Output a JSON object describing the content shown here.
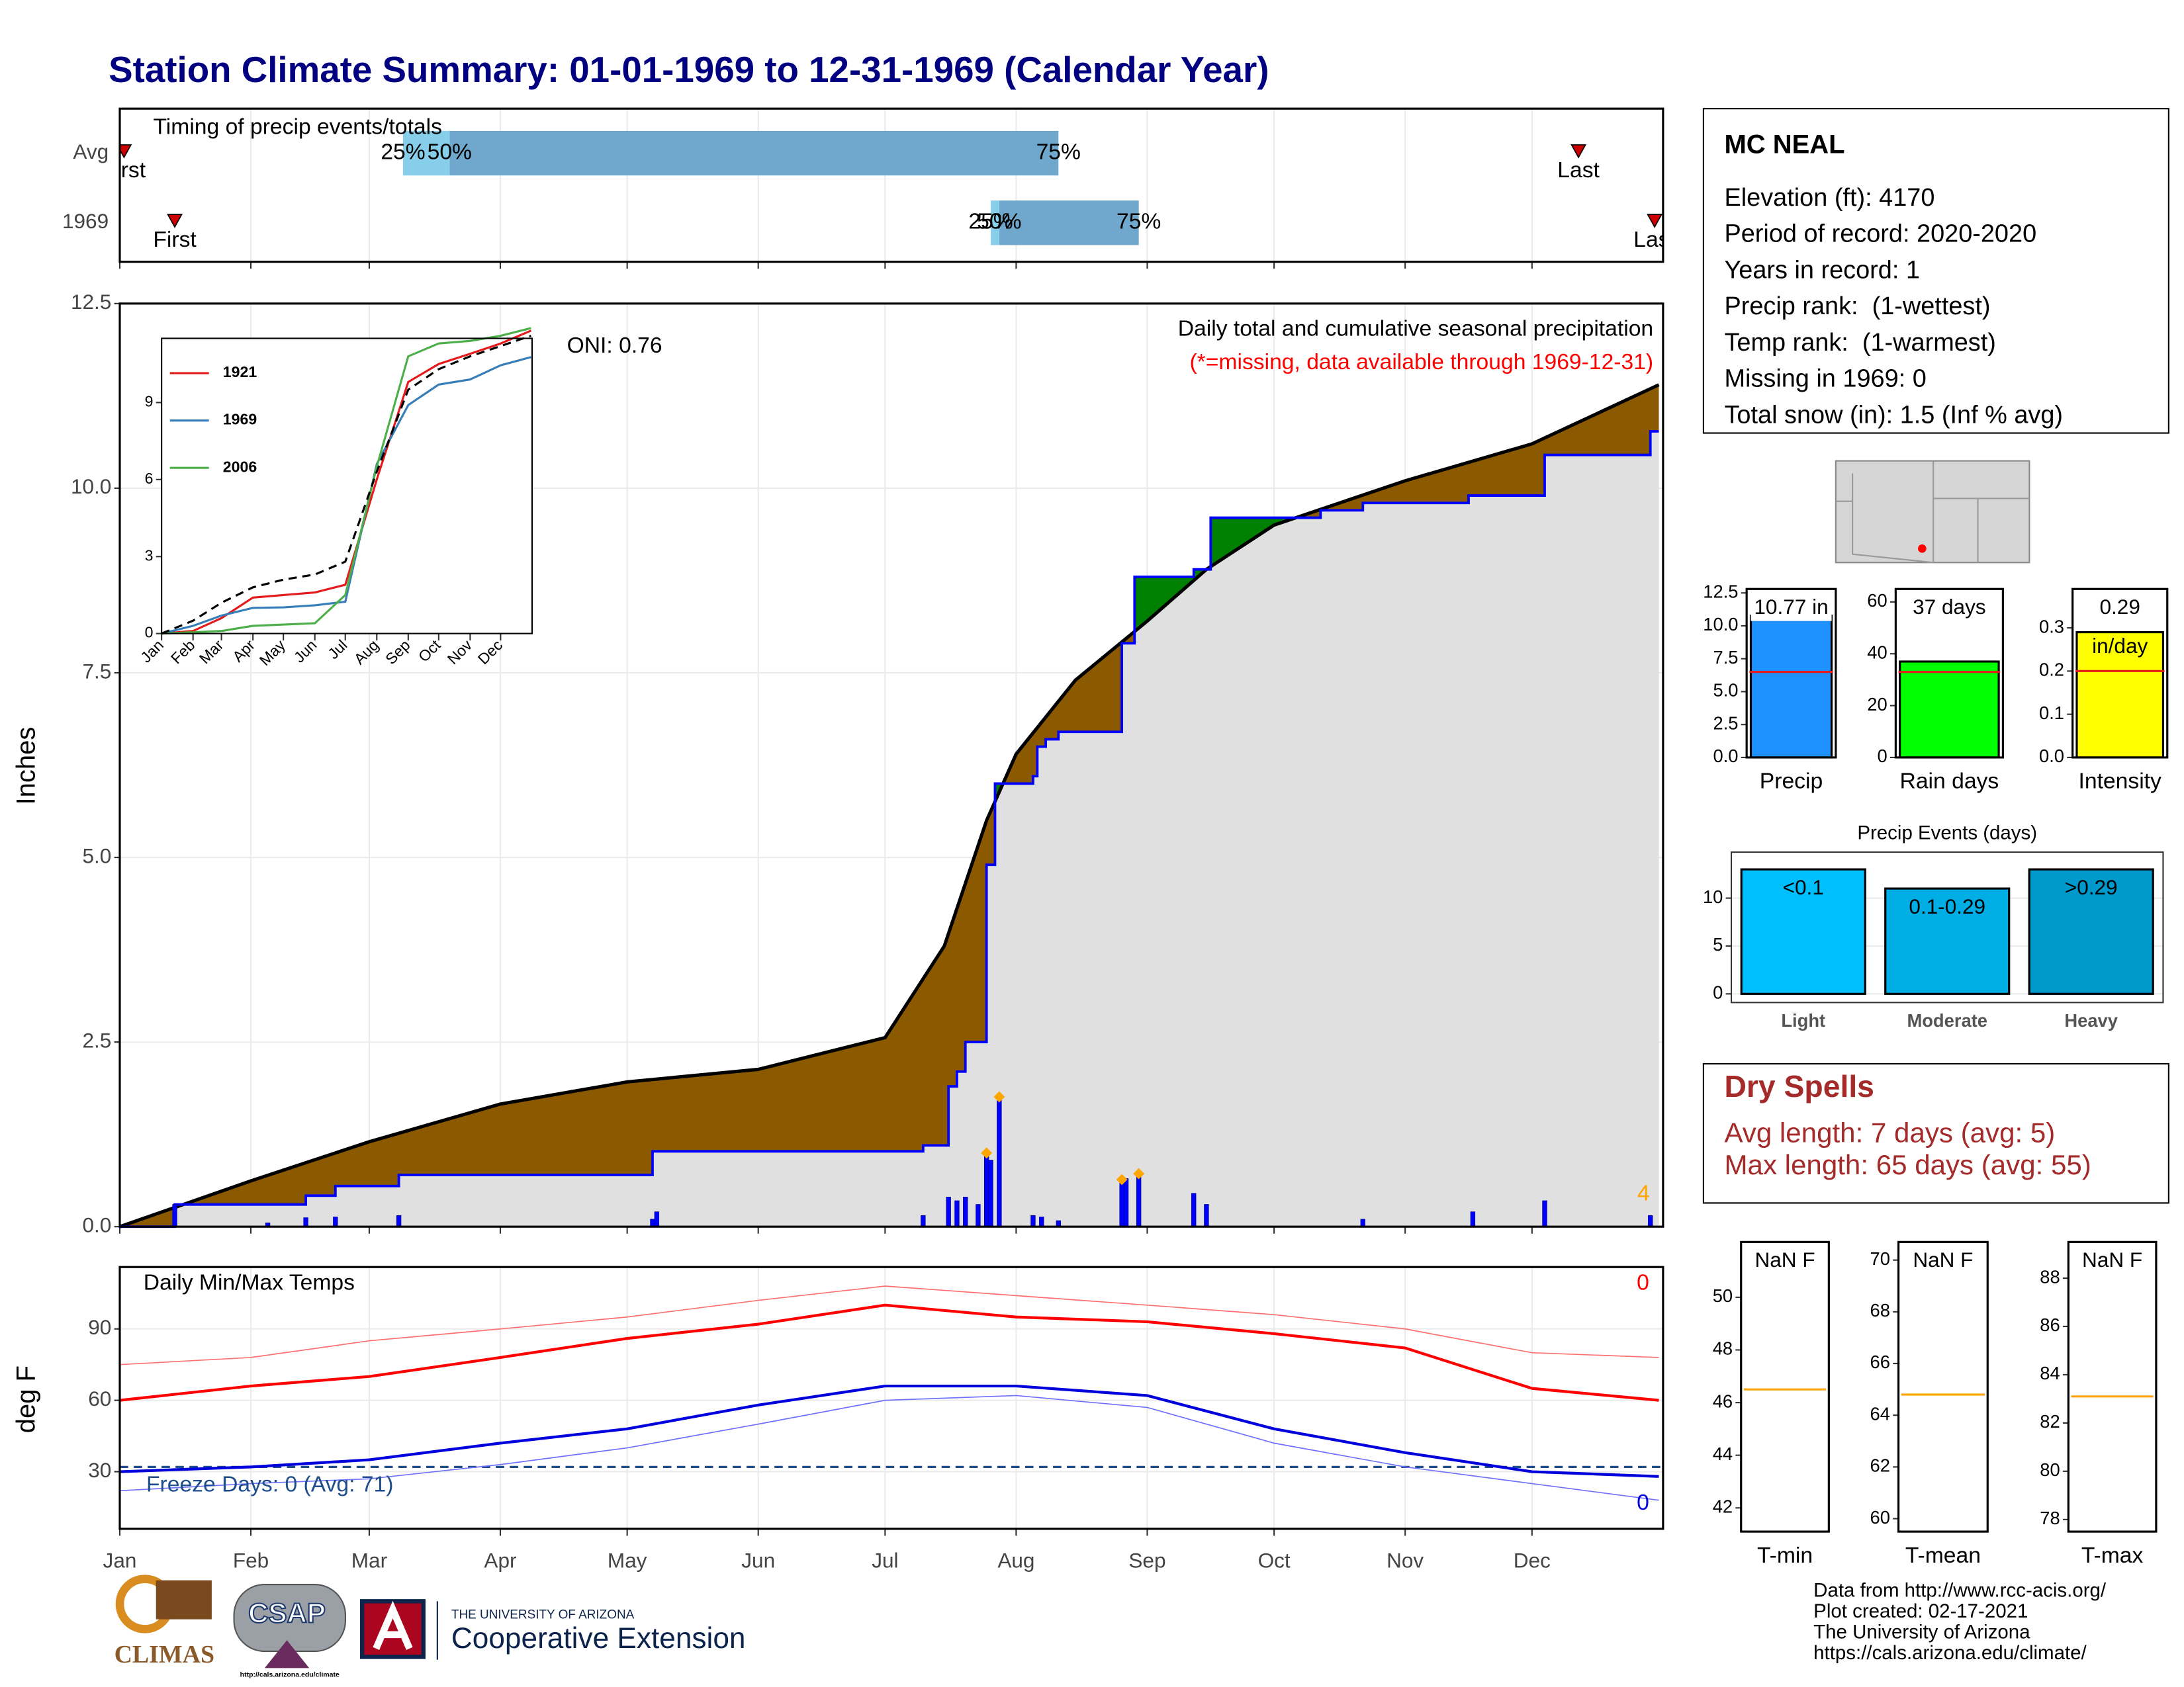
{
  "title": "Station Climate Summary: 01-01-1969 to 12-31-1969 (Calendar Year)",
  "station": {
    "name": "MC NEAL",
    "lines": [
      "Elevation (ft): 4170",
      "Period of record: 2020-2020",
      "Years in record: 1",
      "Precip rank:  (1-wettest)",
      "Temp rank:  (1-warmest)",
      "Missing in 1969: 0",
      "Total snow (in): 1.5 (Inf % avg)"
    ]
  },
  "dry_spells": {
    "title": "Dry Spells",
    "lines": [
      "Avg length: 7 days (avg: 5)",
      "Max length: 65 days (avg: 55)"
    ]
  },
  "footer": {
    "lines": [
      "Data from http://www.rcc-acis.org/",
      "Plot created: 02-17-2021",
      "The University of Arizona",
      "https://cals.arizona.edu/climate/"
    ]
  },
  "logos": {
    "climas": "CLIMAS",
    "csap": "CSAP",
    "csap_url": "http://cals.arizona.edu/climate",
    "ua": "THE UNIVERSITY OF ARIZONA",
    "extension": "Cooperative Extension"
  },
  "chart_data": [
    {
      "type": "timing",
      "title": "Timing of precip events/totals",
      "xlim": [
        1,
        366
      ],
      "xticks": [
        1,
        32,
        60,
        91,
        121,
        152,
        182,
        213,
        244,
        274,
        305,
        335
      ],
      "labels": {
        "first": "First",
        "last": "Last",
        "q25": "25%",
        "q50": "50%",
        "q75": "75%"
      },
      "colors": [
        "#87ceeb",
        "#6fa8cc"
      ],
      "marker_color": "#cc0000",
      "rows": [
        {
          "name": "Avg",
          "first": 2,
          "q25": 68,
          "q50": 79,
          "q75": 223,
          "last": 346
        },
        {
          "name": "1969",
          "first": 14,
          "q25": 207,
          "q50": 209,
          "q75": 242,
          "last": 364
        }
      ]
    },
    {
      "type": "area",
      "ylabel": "Inches",
      "annotations": {
        "title": "Daily total and cumulative seasonal precipitation",
        "subtitle": "(*=missing, data available through 1969-12-31)",
        "oni": "ONI: 0.76",
        "missing": "4"
      },
      "xlim": [
        1,
        366
      ],
      "xticks": [
        1,
        32,
        60,
        91,
        121,
        152,
        182,
        213,
        244,
        274,
        305,
        335
      ],
      "ylim": [
        0,
        12.5
      ],
      "yticks": [
        {
          "value": 0,
          "label": "0.0"
        },
        2.5,
        {
          "value": 5,
          "label": "5.0"
        },
        7.5,
        {
          "value": 10,
          "label": "10.0"
        },
        12.5
      ],
      "grid": true,
      "below_color": "#e0e0e0",
      "series": [
        {
          "style": "area",
          "color": "#000000",
          "fill": "#8b5a00",
          "x": [
            1,
            32,
            60,
            91,
            121,
            152,
            182,
            196,
            206,
            213,
            227,
            244,
            258,
            274,
            305,
            335,
            365
          ],
          "values": [
            0,
            0.62,
            1.15,
            1.66,
            1.96,
            2.13,
            2.56,
            3.8,
            5.5,
            6.4,
            7.4,
            8.2,
            8.9,
            9.5,
            10.1,
            10.6,
            11.4
          ]
        },
        {
          "style": "step",
          "color": "#0000ff",
          "fill": "#008000",
          "x": [
            1,
            14,
            45,
            52,
            67,
            127,
            191,
            197,
            199,
            201,
            206,
            208,
            217,
            218,
            220,
            223,
            238,
            241,
            255,
            259,
            272,
            285,
            295,
            320,
            338,
            363,
            365
          ],
          "values": [
            0,
            0.3,
            0.42,
            0.55,
            0.7,
            1.02,
            1.1,
            1.9,
            2.1,
            2.5,
            4.9,
            6.0,
            6.1,
            6.5,
            6.6,
            6.7,
            7.9,
            8.8,
            8.9,
            9.6,
            9.6,
            9.7,
            9.8,
            9.9,
            10.45,
            10.77,
            10.77
          ]
        },
        {
          "style": "bar",
          "color": "#0000ff",
          "x": [
            14,
            36,
            45,
            52,
            67,
            127,
            128,
            191,
            197,
            199,
            201,
            204,
            206,
            207,
            209,
            217,
            219,
            223,
            238,
            239,
            242,
            255,
            258,
            295,
            321,
            338,
            363
          ],
          "values": [
            0.3,
            0.05,
            0.12,
            0.13,
            0.15,
            0.1,
            0.2,
            0.15,
            0.4,
            0.35,
            0.4,
            0.3,
            0.96,
            0.9,
            1.72,
            0.15,
            0.13,
            0.08,
            0.6,
            0.65,
            0.68,
            0.45,
            0.3,
            0.1,
            0.2,
            0.35,
            0.15
          ]
        },
        {
          "style": "marker",
          "color": "#ffa500",
          "x": [
            206,
            209,
            238,
            242
          ],
          "values": [
            0.96,
            1.72,
            0.6,
            0.68
          ]
        }
      ]
    },
    {
      "type": "line",
      "xlim": [
        1,
        366
      ],
      "xticks": [
        {
          "value": 1,
          "label": "Jan"
        },
        {
          "value": 32,
          "label": "Feb"
        },
        {
          "value": 60,
          "label": "Mar"
        },
        {
          "value": 91,
          "label": "Apr"
        },
        {
          "value": 121,
          "label": "May"
        },
        {
          "value": 152,
          "label": "Jun"
        },
        {
          "value": 182,
          "label": "Jul"
        },
        {
          "value": 213,
          "label": "Aug"
        },
        {
          "value": 244,
          "label": "Sep"
        },
        {
          "value": 274,
          "label": "Oct"
        },
        {
          "value": 305,
          "label": "Nov"
        },
        {
          "value": 335,
          "label": "Dec"
        }
      ],
      "ylim": [
        0,
        11.5
      ],
      "yticks": [
        0,
        3,
        6,
        9
      ],
      "grid": false,
      "x": [
        1,
        32,
        60,
        91,
        121,
        152,
        182,
        213,
        244,
        274,
        305,
        335,
        365
      ],
      "series": [
        {
          "name": "1921",
          "color": "#e41a1c",
          "values": [
            0,
            0.1,
            0.6,
            1.4,
            1.5,
            1.6,
            1.9,
            6,
            9.8,
            10.5,
            10.9,
            11.3,
            11.8
          ]
        },
        {
          "name": "1969",
          "color": "#377eb8",
          "values": [
            0,
            0.3,
            0.7,
            1,
            1.02,
            1.1,
            1.24,
            6.6,
            8.9,
            9.7,
            9.9,
            10.45,
            10.77
          ]
        },
        {
          "name": "2006",
          "color": "#4daf4a",
          "values": [
            0,
            0.05,
            0.1,
            0.3,
            0.35,
            0.4,
            1.5,
            6.5,
            10.8,
            11.3,
            11.4,
            11.6,
            11.9
          ]
        },
        {
          "color": "#000000",
          "dash": true,
          "values": [
            0,
            0.5,
            1.2,
            1.8,
            2.1,
            2.3,
            2.8,
            6.3,
            9.5,
            10.3,
            10.8,
            11.2,
            11.6
          ]
        }
      ]
    },
    {
      "type": "line",
      "title": "Daily Min/Max Temps",
      "ylabel": "deg F",
      "annotations": {
        "freeze": "Freeze Days: 0 (Avg: 71)",
        "max_missing": "0",
        "min_missing": "0"
      },
      "xlim": [
        1,
        366
      ],
      "xticks": [
        {
          "value": 1,
          "label": "Jan"
        },
        {
          "value": 32,
          "label": "Feb"
        },
        {
          "value": 60,
          "label": "Mar"
        },
        {
          "value": 91,
          "label": "Apr"
        },
        {
          "value": 121,
          "label": "May"
        },
        {
          "value": 152,
          "label": "Jun"
        },
        {
          "value": 182,
          "label": "Jul"
        },
        {
          "value": 213,
          "label": "Aug"
        },
        {
          "value": 244,
          "label": "Sep"
        },
        {
          "value": 274,
          "label": "Oct"
        },
        {
          "value": 305,
          "label": "Nov"
        },
        {
          "value": 335,
          "label": "Dec"
        }
      ],
      "ylim": [
        6,
        116
      ],
      "yticks": [
        30,
        60,
        90
      ],
      "grid": true,
      "x": [
        1,
        32,
        60,
        91,
        121,
        152,
        182,
        213,
        244,
        274,
        305,
        335,
        365
      ],
      "reference": {
        "value": 32,
        "color": "#1f4e8c"
      },
      "series": [
        {
          "color": "#ff7070",
          "width": 0.8,
          "values": [
            75,
            78,
            85,
            90,
            95,
            102,
            108,
            104,
            100,
            96,
            90,
            80,
            78
          ]
        },
        {
          "color": "#ff0000",
          "width": 2,
          "values": [
            60,
            66,
            70,
            78,
            86,
            92,
            100,
            95,
            93,
            88,
            82,
            65,
            60
          ]
        },
        {
          "color": "#7070ff",
          "width": 0.8,
          "values": [
            22,
            25,
            27,
            33,
            40,
            50,
            60,
            62,
            57,
            42,
            32,
            25,
            18
          ]
        },
        {
          "color": "#0000dd",
          "width": 2,
          "values": [
            30,
            32,
            35,
            42,
            48,
            58,
            66,
            66,
            62,
            48,
            38,
            30,
            28
          ]
        }
      ]
    },
    {
      "type": "bar",
      "categories": [
        "Precip"
      ],
      "values": [
        10.77
      ],
      "value_labels": [
        "10.77 in"
      ],
      "color": "#1e90ff",
      "reference": 6.5,
      "reference_color": "#e41a1c",
      "ylim": [
        0,
        12.8
      ],
      "yticks": [
        {
          "value": 0,
          "label": "0.0"
        },
        2.5,
        {
          "value": 5,
          "label": "5.0"
        },
        7.5,
        {
          "value": 10,
          "label": "10.0"
        },
        12.5
      ]
    },
    {
      "type": "bar",
      "categories": [
        "Rain days"
      ],
      "values": [
        37
      ],
      "value_labels": [
        "37 days"
      ],
      "color": "#00ff00",
      "reference": 33,
      "reference_color": "#e41a1c",
      "ylim": [
        0,
        65
      ],
      "yticks": [
        0,
        20,
        40,
        60
      ]
    },
    {
      "type": "bar",
      "categories": [
        "Intensity"
      ],
      "values": [
        0.29
      ],
      "unit": "in/day",
      "color": "#ffff00",
      "reference": 0.2,
      "reference_color": "#e41a1c",
      "ylim": [
        0,
        0.39
      ],
      "yticks": [
        {
          "value": 0,
          "label": "0.0"
        },
        0.1,
        0.2,
        0.3
      ]
    },
    {
      "type": "bar",
      "title": "Precip Events (days)",
      "categories": [
        "Light",
        "Moderate",
        "Heavy"
      ],
      "bar_labels": [
        "<0.1",
        "0.1-0.29",
        ">0.29"
      ],
      "values": [
        13,
        11,
        13
      ],
      "colors": [
        "#00bfff",
        "#00aee6",
        "#0099cc"
      ],
      "ylim": [
        -0.9,
        14.8
      ],
      "yticks": [
        0,
        5,
        10
      ],
      "grid": true
    },
    {
      "type": "bar",
      "categories": [
        "T-min"
      ],
      "values": [
        null
      ],
      "value_labels": [
        "NaN F"
      ],
      "reference": 46.5,
      "reference_color": "#ffa500",
      "ylim": [
        41.1,
        52.1
      ],
      "yticks": [
        42,
        44,
        46,
        48,
        50
      ]
    },
    {
      "type": "bar",
      "categories": [
        "T-mean"
      ],
      "values": [
        null
      ],
      "value_labels": [
        "NaN F"
      ],
      "reference": 64.8,
      "reference_color": "#ffa500",
      "ylim": [
        59.5,
        70.7
      ],
      "yticks": [
        60,
        62,
        64,
        66,
        68,
        70
      ]
    },
    {
      "type": "bar",
      "categories": [
        "T-max"
      ],
      "values": [
        null
      ],
      "value_labels": [
        "NaN F"
      ],
      "reference": 83.1,
      "reference_color": "#ffa500",
      "ylim": [
        77.5,
        89.5
      ],
      "yticks": [
        78,
        80,
        82,
        84,
        86,
        88
      ]
    }
  ]
}
